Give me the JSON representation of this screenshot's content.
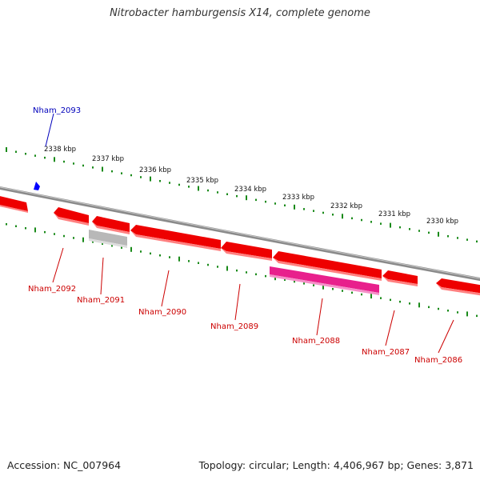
{
  "title": "Nitrobacter hamburgensis X14, complete genome",
  "footer": {
    "accession": "Accession: NC_007964",
    "summary": "Topology: circular; Length: 4,406,967 bp; Genes: 3,871"
  },
  "colors": {
    "backbone": "#8a8a8a",
    "ticks": "#1a8a1a",
    "gene_red": "#ee0000",
    "gene_red_label": "#cc0000",
    "gene_pink": "#e8208c",
    "gene_grey": "#b8b8b8",
    "forward_marker": "#0000ff",
    "forward_label": "#0000bb"
  },
  "ruler": {
    "unit": "kbp",
    "labels": [
      "2338 kbp",
      "2337 kbp",
      "2336 kbp",
      "2335 kbp",
      "2334 kbp",
      "2333 kbp",
      "2332 kbp",
      "2331 kbp",
      "2330 kbp"
    ]
  },
  "genes": {
    "forward": [
      "Nham_2093"
    ],
    "reverse": [
      "Nham_2092",
      "Nham_2091",
      "Nham_2090",
      "Nham_2089",
      "Nham_2088",
      "Nham_2087",
      "Nham_2086"
    ]
  }
}
